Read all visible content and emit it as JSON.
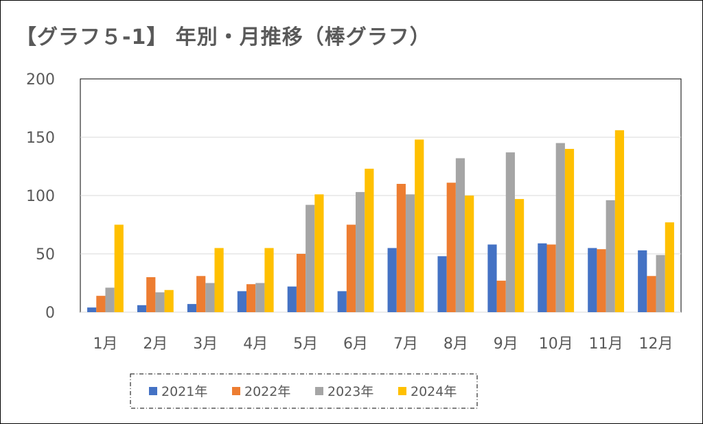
{
  "chart_data": {
    "type": "bar",
    "title": "【グラフ５-1】 年別・月推移（棒グラフ）",
    "categories": [
      "1月",
      "2月",
      "3月",
      "4月",
      "5月",
      "6月",
      "7月",
      "8月",
      "9月",
      "10月",
      "11月",
      "12月"
    ],
    "series": [
      {
        "name": "2021年",
        "color": "#4472C4",
        "values": [
          4,
          6,
          7,
          18,
          22,
          18,
          55,
          48,
          58,
          59,
          55,
          53
        ]
      },
      {
        "name": "2022年",
        "color": "#ED7D31",
        "values": [
          14,
          30,
          31,
          24,
          50,
          75,
          110,
          111,
          27,
          58,
          54,
          31
        ]
      },
      {
        "name": "2023年",
        "color": "#A5A5A5",
        "values": [
          21,
          17,
          25,
          25,
          92,
          103,
          101,
          132,
          137,
          145,
          96,
          49
        ]
      },
      {
        "name": "2024年",
        "color": "#FFC000",
        "values": [
          75,
          19,
          55,
          55,
          101,
          123,
          148,
          100,
          97,
          140,
          156,
          77
        ]
      }
    ],
    "yticks": [
      "0",
      "50",
      "100",
      "150",
      "200"
    ],
    "ylim": [
      0,
      200
    ],
    "xlabel": "",
    "ylabel": "",
    "grid": true,
    "legend_position": "bottom"
  }
}
